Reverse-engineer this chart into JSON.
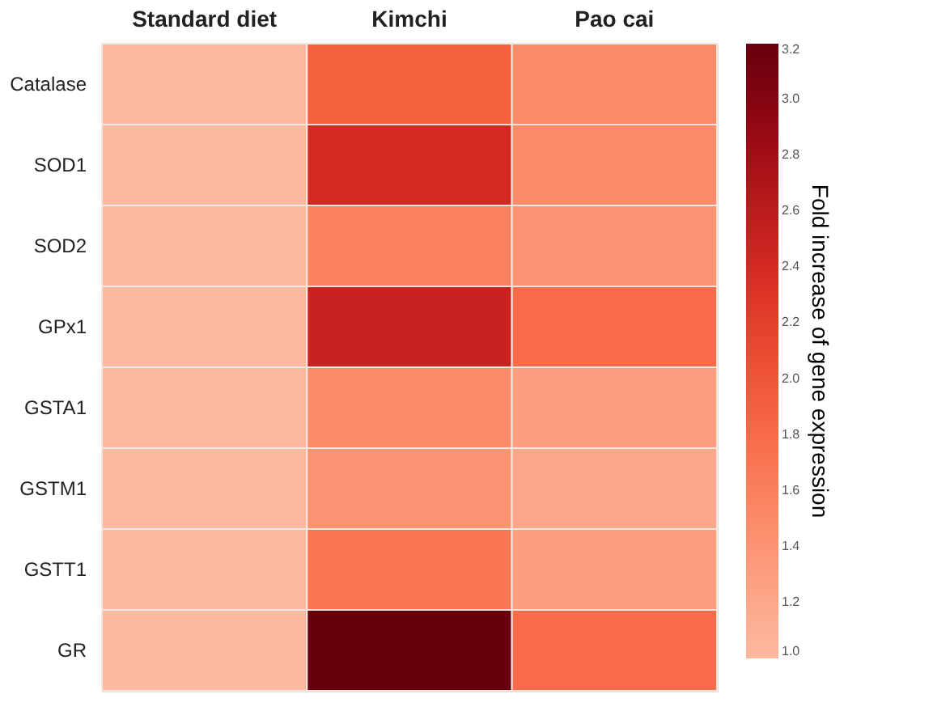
{
  "chart_data": {
    "type": "heatmap",
    "categories": [
      "Standard diet",
      "Kimchi",
      "Pao cai"
    ],
    "y_categories": [
      "Catalase",
      "SOD1",
      "SOD2",
      "GPx1",
      "GSTA1",
      "GSTM1",
      "GSTT1",
      "GR"
    ],
    "cells": [
      [
        1.0,
        1.9,
        1.5
      ],
      [
        1.0,
        2.4,
        1.5
      ],
      [
        1.0,
        1.6,
        1.4
      ],
      [
        1.0,
        2.5,
        1.8
      ],
      [
        1.0,
        1.5,
        1.3
      ],
      [
        1.0,
        1.4,
        1.2
      ],
      [
        1.0,
        1.7,
        1.3
      ],
      [
        1.0,
        3.2,
        1.8
      ]
    ],
    "clabel": "Fold increase of gene expression",
    "clim": [
      1.0,
      3.2
    ],
    "cticks": [
      {
        "value": 1.0,
        "label": "1.0"
      },
      {
        "value": 1.2,
        "label": "1.2"
      },
      {
        "value": 1.4,
        "label": "1.4"
      },
      {
        "value": 1.6,
        "label": "1.6"
      },
      {
        "value": 1.8,
        "label": "1.8"
      },
      {
        "value": 2.0,
        "label": "2.0"
      },
      {
        "value": 2.2,
        "label": "2.2"
      },
      {
        "value": 2.4,
        "label": "2.4"
      },
      {
        "value": 2.6,
        "label": "2.6"
      },
      {
        "value": 2.8,
        "label": "2.8"
      },
      {
        "value": 3.0,
        "label": "3.0"
      },
      {
        "value": 3.2,
        "label": "3.2"
      }
    ]
  }
}
